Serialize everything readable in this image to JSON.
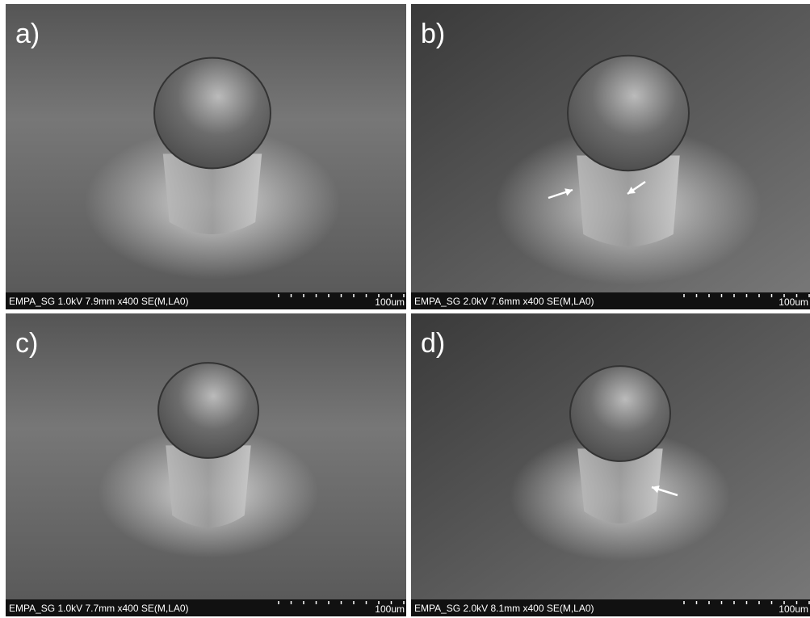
{
  "panels": [
    {
      "label": "a)",
      "info": "EMPA_SG 1.0kV 7.9mm x400 SE(M,LA0)",
      "scale": "100um"
    },
    {
      "label": "b)",
      "info": "EMPA_SG 2.0kV 7.6mm x400 SE(M,LA0)",
      "scale": "100um"
    },
    {
      "label": "c)",
      "info": "EMPA_SG 1.0kV 7.7mm x400 SE(M,LA0)",
      "scale": "100um"
    },
    {
      "label": "d)",
      "info": "EMPA_SG 2.0kV 8.1mm x400 SE(M,LA0)",
      "scale": "100um"
    }
  ]
}
